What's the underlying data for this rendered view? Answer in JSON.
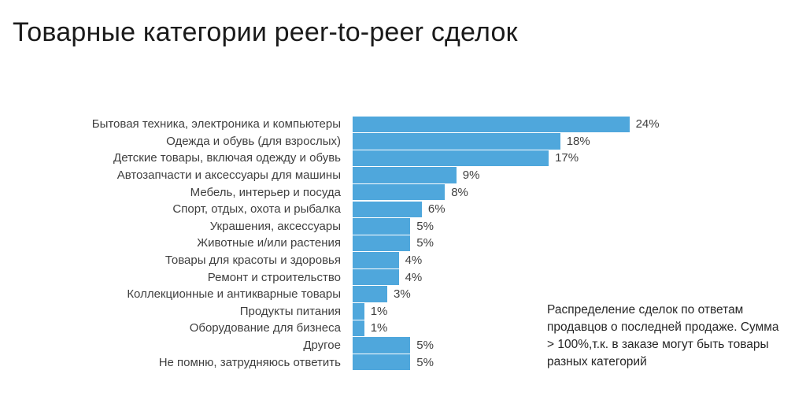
{
  "title": "Товарные категории peer-to-peer сделок",
  "annotation": "Распределение сделок по ответам продавцов о последней продаже. Сумма > 100%,т.к. в заказе могут быть товары разных категорий",
  "colors": {
    "bar": "#4fa7dc",
    "text": "#3f3f3f"
  },
  "chart_data": {
    "type": "bar",
    "orientation": "horizontal",
    "title": "Товарные категории peer-to-peer сделок",
    "xlabel": "",
    "ylabel": "",
    "xlim": [
      0,
      25
    ],
    "grid": false,
    "legend": false,
    "value_suffix": "%",
    "categories": [
      "Бытовая техника, электроника и компьютеры",
      "Одежда и обувь (для взрослых)",
      "Детские товары, включая одежду и обувь",
      "Автозапчасти и аксессуары для машины",
      "Мебель, интерьер и посуда",
      "Спорт, отдых, охота и рыбалка",
      "Украшения, аксессуары",
      "Животные и/или растения",
      "Товары для красоты и здоровья",
      "Ремонт и строительство",
      "Коллекционные и антикварные товары",
      "Продукты питания",
      "Оборудование для бизнеса",
      "Другое",
      "Не помню, затрудняюсь ответить"
    ],
    "values": [
      24,
      18,
      17,
      9,
      8,
      6,
      5,
      5,
      4,
      4,
      3,
      1,
      1,
      5,
      5
    ],
    "value_labels": [
      "24%",
      "18%",
      "17%",
      "9%",
      "8%",
      "6%",
      "5%",
      "5%",
      "4%",
      "4%",
      "3%",
      "1%",
      "1%",
      "5%",
      "5%"
    ]
  }
}
